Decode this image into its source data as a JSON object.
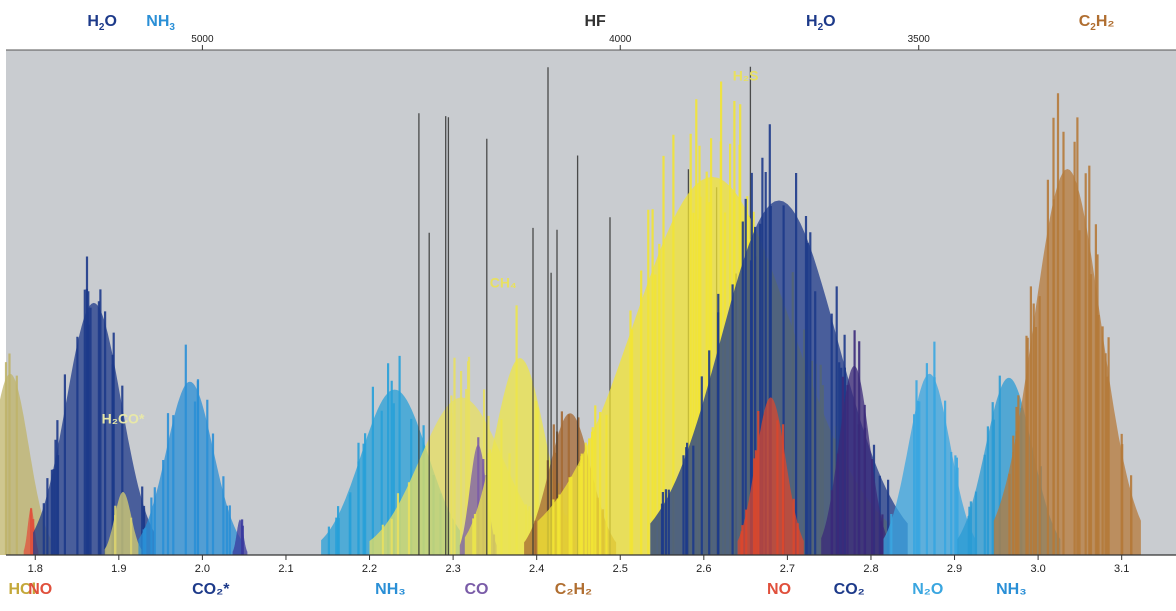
{
  "chart_data": {
    "type": "area",
    "title": "",
    "x_bottom": {
      "unit": "µm",
      "range": [
        1.765,
        3.165
      ],
      "ticks": [
        1.8,
        1.9,
        2.0,
        2.1,
        2.2,
        2.3,
        2.4,
        2.5,
        2.6,
        2.7,
        2.8,
        2.9,
        3.0,
        3.1
      ],
      "tick_labels": [
        "1.8",
        "1.9",
        "2.0",
        "2.1",
        "2.2",
        "2.3",
        "2.4",
        "2.5",
        "2.6",
        "2.7",
        "2.8",
        "2.9",
        "3.0",
        "3.1"
      ]
    },
    "x_top": {
      "unit": "cm-1",
      "ticks": [
        5000,
        4000,
        3500
      ],
      "tick_labels": [
        "5000",
        "4000",
        "3500"
      ]
    },
    "y_range": [
      0,
      1
    ],
    "series": [
      {
        "id": "HCl",
        "color": "#bfb46a",
        "center": 1.77,
        "width": 0.022,
        "amp": 0.46,
        "density": 6
      },
      {
        "id": "NO_1",
        "color": "#e0503c",
        "center": 1.795,
        "width": 0.004,
        "amp": 0.12,
        "density": 2
      },
      {
        "id": "H2O_1",
        "color": "#1d3a8a",
        "center": 1.87,
        "width": 0.033,
        "amp": 0.64,
        "density": 26
      },
      {
        "id": "H2CO",
        "color": "#d8d070",
        "center": 1.905,
        "width": 0.01,
        "amp": 0.16,
        "density": 3
      },
      {
        "id": "NH3_1",
        "color": "#2a8fd6",
        "center": 1.985,
        "width": 0.028,
        "amp": 0.44,
        "density": 16
      },
      {
        "id": "CO2_1",
        "color": "#3a3a9e",
        "center": 2.045,
        "width": 0.004,
        "amp": 0.09,
        "density": 2
      },
      {
        "id": "NH3_2",
        "color": "#27a0d8",
        "center": 2.23,
        "width": 0.04,
        "amp": 0.42,
        "density": 20
      },
      {
        "id": "CH4_low",
        "color": "#e8e060",
        "center": 2.31,
        "width": 0.05,
        "amp": 0.4,
        "density": 16
      },
      {
        "id": "CO",
        "color": "#7a5ca8",
        "center": 2.33,
        "width": 0.01,
        "amp": 0.28,
        "density": 4
      },
      {
        "id": "CH4",
        "color": "#ece64a",
        "center": 2.38,
        "width": 0.03,
        "amp": 0.5,
        "density": 10
      },
      {
        "id": "C2H2_1",
        "color": "#a56a34",
        "center": 2.44,
        "width": 0.025,
        "amp": 0.36,
        "density": 10
      },
      {
        "id": "HF",
        "color": "#333333",
        "center": 2.47,
        "width": 0.12,
        "amp": 0.99,
        "density": 16,
        "thin": true
      },
      {
        "id": "H2S",
        "color": "#f2e434",
        "center": 2.61,
        "width": 0.095,
        "amp": 0.96,
        "density": 60
      },
      {
        "id": "H2O_2",
        "color": "#1d3a8a",
        "center": 2.69,
        "width": 0.07,
        "amp": 0.9,
        "density": 40
      },
      {
        "id": "NO_2",
        "color": "#d9472e",
        "center": 2.68,
        "width": 0.018,
        "amp": 0.4,
        "density": 12
      },
      {
        "id": "CO2_2",
        "color": "#3b2a7a",
        "center": 2.78,
        "width": 0.018,
        "amp": 0.48,
        "density": 10
      },
      {
        "id": "N2O",
        "color": "#3aa6e0",
        "center": 2.87,
        "width": 0.025,
        "amp": 0.46,
        "density": 14
      },
      {
        "id": "NH3_3",
        "color": "#2a9bd4",
        "center": 2.965,
        "width": 0.028,
        "amp": 0.45,
        "density": 12
      },
      {
        "id": "C2H2_2",
        "color": "#b57a3a",
        "center": 3.035,
        "width": 0.04,
        "amp": 0.98,
        "density": 36
      }
    ],
    "top_labels": [
      {
        "text": "H",
        "sub": "2",
        "rest": "O",
        "x": 1.88,
        "color": "#1d3a8a"
      },
      {
        "text": "NH",
        "sub": "3",
        "rest": "",
        "x": 1.95,
        "color": "#2a8fd6"
      },
      {
        "text": "HF",
        "sub": "",
        "rest": "",
        "x": 2.47,
        "color": "#333333"
      },
      {
        "text": "H",
        "sub": "2",
        "rest": "O",
        "x": 2.74,
        "color": "#1d3a8a"
      },
      {
        "text": "C",
        "sub": "2",
        "rest": "H₂",
        "x": 3.07,
        "color": "#b06e30"
      }
    ],
    "bottom_labels": [
      {
        "text": "HCl",
        "x": 1.768,
        "color": "#c4a83a"
      },
      {
        "text": "NO",
        "x": 1.806,
        "color": "#e0503c"
      },
      {
        "text": "CO₂*",
        "x": 2.01,
        "color": "#1d3a8a"
      },
      {
        "text": "NH₃",
        "x": 2.225,
        "color": "#2a8fd6"
      },
      {
        "text": "CO",
        "x": 2.328,
        "color": "#7a5ca8"
      },
      {
        "text": "C₂H₂",
        "x": 2.444,
        "color": "#b06e30"
      },
      {
        "text": "NO",
        "x": 2.69,
        "color": "#e0503c"
      },
      {
        "text": "CO₂",
        "x": 2.774,
        "color": "#1d3a8a"
      },
      {
        "text": "N₂O",
        "x": 2.868,
        "color": "#3aa6e0"
      },
      {
        "text": "NH₃",
        "x": 2.968,
        "color": "#2a8fd6"
      }
    ],
    "inline_labels": [
      {
        "text": "H₂S",
        "x": 2.65,
        "y": 0.94,
        "color": "#e8e060"
      },
      {
        "text": "CH₄",
        "x": 2.36,
        "y": 0.53,
        "color": "#e8e060"
      },
      {
        "text": "H₂CO*",
        "x": 1.905,
        "y": 0.26,
        "color": "#e8e8a8"
      }
    ]
  }
}
